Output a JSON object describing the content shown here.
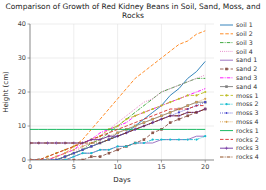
{
  "chart_data": {
    "type": "line",
    "title": "Comparison of Growth of Red Kidney Beans in Soil, Sand, Moss, and Rocks",
    "x_label": "Days",
    "y_label": "Height (cm)",
    "xlim": [
      0,
      21
    ],
    "ylim": [
      0,
      40
    ],
    "xticks": [
      0,
      5,
      10,
      15,
      20
    ],
    "yticks": [
      0,
      10,
      20,
      30,
      40
    ],
    "grid": true,
    "legend": "right",
    "x": [
      0,
      1,
      2,
      3,
      4,
      5,
      6,
      7,
      8,
      9,
      10,
      11,
      12,
      13,
      14,
      15,
      16,
      17,
      18,
      19,
      20
    ],
    "series": [
      {
        "name": "soil 1",
        "color": "#1f77b4",
        "line_style": "solid",
        "marker": "none",
        "values": [
          0,
          0,
          0,
          0,
          1,
          2,
          3,
          4,
          5,
          6,
          7,
          8,
          10,
          12,
          14,
          16,
          19,
          21,
          24,
          26,
          29
        ]
      },
      {
        "name": "soil 2",
        "color": "#ff7f0e",
        "line_style": "dashed",
        "marker": "none",
        "values": [
          0,
          0,
          0,
          1,
          2,
          4,
          6,
          9,
          12,
          15,
          18,
          21,
          24,
          26,
          28,
          30,
          32,
          34,
          35,
          37,
          38
        ]
      },
      {
        "name": "soil 3",
        "color": "#2ca02c",
        "line_style": "dashdot",
        "marker": "none",
        "values": [
          0,
          0,
          0,
          0,
          1,
          2,
          3,
          5,
          6,
          8,
          10,
          12,
          14,
          16,
          18,
          20,
          21,
          22,
          23,
          24,
          24
        ]
      },
      {
        "name": "soil 4",
        "color": "#e377c2",
        "line_style": "dotted",
        "marker": "none",
        "values": [
          0,
          0,
          0,
          0,
          1,
          2,
          4,
          5,
          7,
          9,
          11,
          13,
          15,
          17,
          18,
          20,
          21,
          22,
          23,
          24,
          25
        ]
      },
      {
        "name": "sand 1",
        "color": "#9467bd",
        "line_style": "solid",
        "marker": "none",
        "values": [
          0,
          0,
          0,
          0,
          0,
          1,
          2,
          2,
          3,
          3,
          4,
          4,
          5,
          5,
          5,
          6,
          6,
          6,
          6,
          7,
          7
        ]
      },
      {
        "name": "sand 2",
        "color": "#8c564b",
        "line_style": "dashed",
        "marker": "square",
        "values": [
          0,
          0,
          0,
          0,
          0,
          0,
          0,
          1,
          1,
          2,
          3,
          4,
          5,
          6,
          8,
          9,
          11,
          12,
          13,
          14,
          15
        ]
      },
      {
        "name": "sand 3",
        "color": "#ff00ff",
        "line_style": "dashdot",
        "marker": "none",
        "values": [
          0,
          0,
          0,
          1,
          2,
          3,
          5,
          6,
          8,
          9,
          10,
          11,
          13,
          14,
          15,
          16,
          17,
          18,
          19,
          20,
          21
        ]
      },
      {
        "name": "sand 4",
        "color": "#7f7f7f",
        "line_style": "solid",
        "marker": "square",
        "values": [
          0,
          0,
          0,
          0,
          1,
          2,
          3,
          4,
          5,
          6,
          8,
          9,
          10,
          11,
          12,
          13,
          14,
          15,
          16,
          17,
          17
        ]
      },
      {
        "name": "moss 1",
        "color": "#bcbd22",
        "line_style": "dashed",
        "marker": "point",
        "values": [
          0,
          0,
          1,
          2,
          3,
          4,
          5,
          6,
          7,
          9,
          10,
          12,
          13,
          14,
          15,
          16,
          17,
          18,
          19,
          19,
          20
        ]
      },
      {
        "name": "moss 2",
        "color": "#17becf",
        "line_style": "dashdot",
        "marker": "point",
        "values": [
          0,
          0,
          0,
          0,
          0,
          1,
          2,
          2,
          3,
          3,
          4,
          4,
          5,
          5,
          6,
          6,
          6,
          6,
          6,
          6,
          7
        ]
      },
      {
        "name": "moss 3",
        "color": "#4444cc",
        "line_style": "dotted",
        "marker": "point",
        "values": [
          0,
          0,
          0,
          0,
          1,
          2,
          3,
          4,
          5,
          6,
          7,
          8,
          9,
          10,
          11,
          12,
          13,
          14,
          15,
          16,
          17
        ]
      },
      {
        "name": "moss 4",
        "color": "#d69f4e",
        "line_style": "dotted",
        "marker": "point",
        "values": [
          0,
          0,
          0,
          1,
          2,
          3,
          4,
          5,
          6,
          7,
          8,
          9,
          10,
          11,
          12,
          13,
          14,
          15,
          16,
          17,
          18
        ]
      },
      {
        "name": "rocks 1",
        "color": "#00b050",
        "line_style": "solid",
        "marker": "none",
        "values": [
          9,
          9,
          9,
          9,
          9,
          9,
          9,
          9,
          9,
          9,
          9,
          9,
          9,
          9,
          9,
          9,
          9,
          9,
          9,
          9,
          9
        ]
      },
      {
        "name": "rocks 2",
        "color": "#d62728",
        "line_style": "dashed",
        "marker": "none",
        "values": [
          0,
          0,
          1,
          2,
          3,
          4,
          5,
          6,
          7,
          8,
          9,
          10,
          11,
          12,
          13,
          14,
          15,
          15,
          15,
          16,
          16
        ]
      },
      {
        "name": "rocks 3",
        "color": "#7030a0",
        "line_style": "solid",
        "marker": "plus",
        "values": [
          5,
          5,
          5,
          5,
          5,
          5,
          5,
          6,
          6,
          7,
          7,
          8,
          9,
          10,
          11,
          12,
          13,
          13,
          14,
          14,
          15
        ]
      },
      {
        "name": "rocks 4",
        "color": "#843c0c",
        "line_style": "dashdot",
        "marker": "none",
        "values": [
          5,
          5,
          5,
          5,
          5,
          5,
          5,
          5,
          5,
          6,
          7,
          8,
          9,
          10,
          11,
          12,
          13,
          13,
          14,
          14,
          15
        ]
      }
    ]
  }
}
